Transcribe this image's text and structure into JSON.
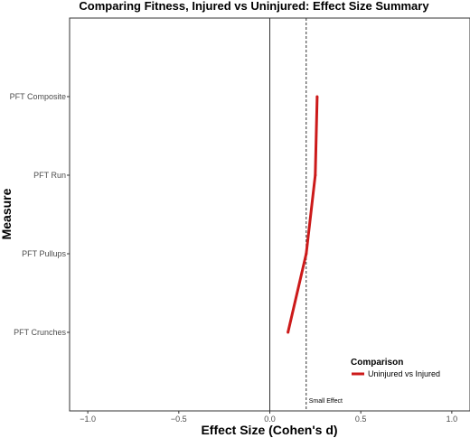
{
  "chart_data": {
    "type": "line",
    "title": "Comparing Fitness, Injured vs Uninjured: Effect Size Summary",
    "xlabel": "Effect Size (Cohen's d)",
    "ylabel": "Measure",
    "xlim": [
      -1.1,
      1.1
    ],
    "x_ticks": [
      -1.0,
      -0.5,
      0.0,
      0.5,
      1.0
    ],
    "x_tick_labels": [
      "−1.0",
      "−0.5",
      "0.0",
      "0.5",
      "1.0"
    ],
    "categories": [
      "PFT Crunches",
      "PFT Pullups",
      "PFT Run",
      "PFT Composite"
    ],
    "series": [
      {
        "name": "Uninjured vs Injured",
        "values": [
          0.1,
          0.2,
          0.25,
          0.26
        ]
      }
    ],
    "reference_lines": [
      {
        "x": 0.0,
        "style": "solid",
        "label": ""
      },
      {
        "x": 0.2,
        "style": "dashed",
        "label": "Small Effect"
      }
    ],
    "legend": {
      "title": "Comparison",
      "position": "bottom-right"
    },
    "grid": false,
    "colors": {
      "series": "#cc1a1a",
      "frame": "#333333",
      "reference": "#333333"
    }
  }
}
